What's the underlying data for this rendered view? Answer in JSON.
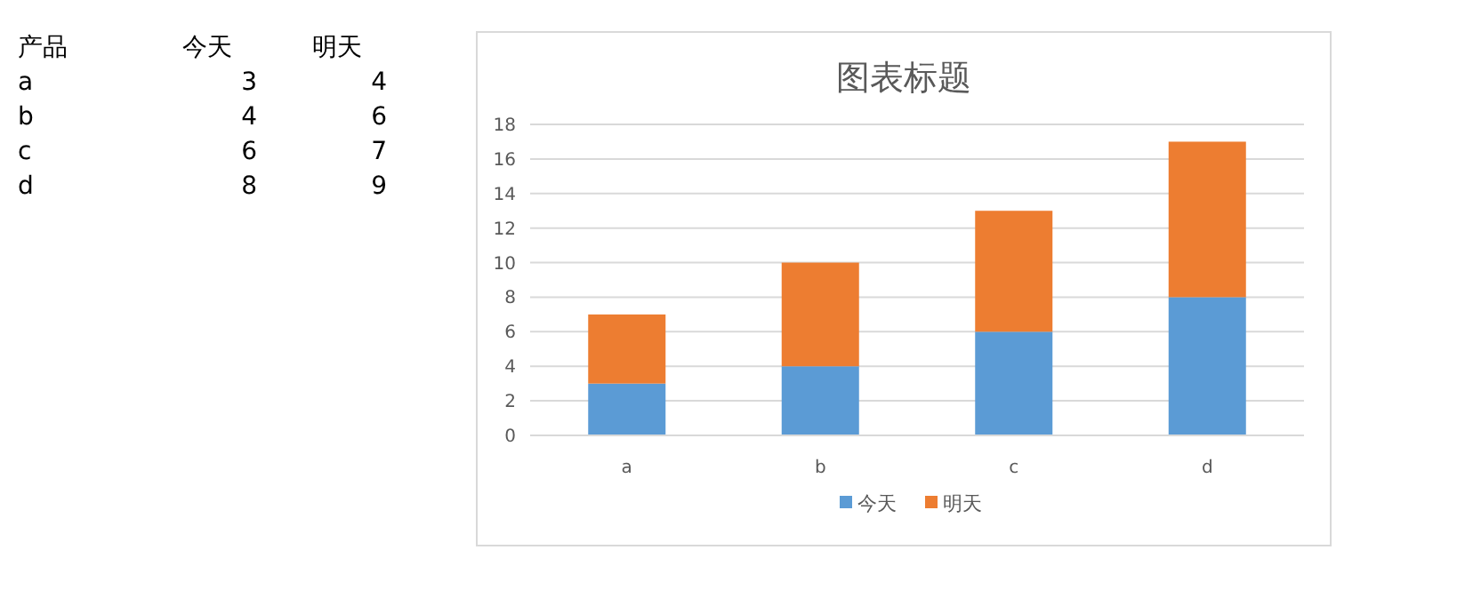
{
  "chart_data": [
    {
      "type": "heatmap",
      "categories": [
        "今天",
        "明天"
      ],
      "y_categories": [
        "a",
        "b",
        "c",
        "d"
      ],
      "cells": [
        [
          3,
          4
        ],
        [
          4,
          6
        ],
        [
          6,
          7
        ],
        [
          8,
          9
        ]
      ],
      "data_labels": true,
      "annotations": [
        "产品"
      ]
    },
    {
      "type": "bar",
      "title": "图表标题",
      "stacked": true,
      "categories": [
        "a",
        "b",
        "c",
        "d"
      ],
      "series": [
        {
          "name": "今天",
          "color": "#5b9bd5",
          "values": [
            3,
            4,
            6,
            8
          ]
        },
        {
          "name": "明天",
          "color": "#ed7d31",
          "values": [
            4,
            6,
            7,
            9
          ]
        }
      ],
      "ylim": [
        0,
        18
      ],
      "yticks": [
        0,
        2,
        4,
        6,
        8,
        10,
        12,
        14,
        16,
        18
      ],
      "grid": "y",
      "legend": "bottom"
    }
  ]
}
